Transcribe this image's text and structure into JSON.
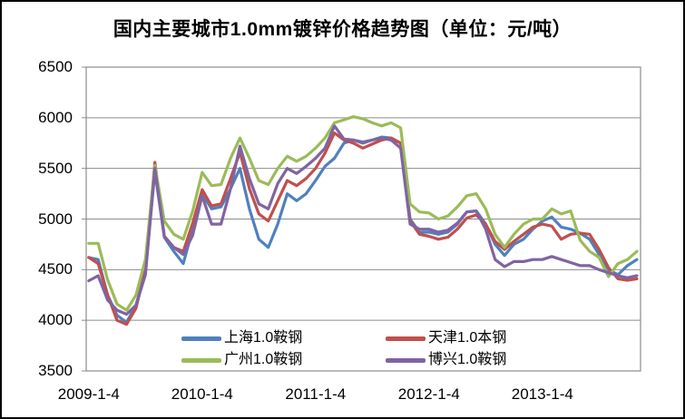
{
  "chart_data": {
    "type": "line",
    "title": "国内主要城市1.0mm镀锌价格趋势图（单位：元/吨）",
    "unit": "元/吨",
    "grid": true,
    "legend_position": "bottom-inside-two-columns",
    "y_axis": {
      "min": 3500,
      "max": 6500,
      "step": 500,
      "ticks": [
        6500,
        6000,
        5500,
        5000,
        4500,
        4000,
        3500
      ]
    },
    "x_axis": {
      "tick_labels": [
        "2009-1-4",
        "2010-1-4",
        "2011-1-4",
        "2012-1-4",
        "2013-1-4"
      ],
      "sampling": "monthly",
      "start": "2009-01",
      "end": "2013-11"
    },
    "axis_color": "#8c8c8c",
    "series": [
      {
        "name": "上海1.0鞍钢",
        "color": "#4F81BD",
        "values": [
          4620,
          4600,
          4250,
          4050,
          3980,
          4150,
          4480,
          5470,
          4820,
          4680,
          4560,
          4900,
          5250,
          5100,
          5120,
          5300,
          5500,
          5100,
          4800,
          4720,
          4950,
          5250,
          5180,
          5250,
          5380,
          5520,
          5600,
          5750,
          5780,
          5760,
          5780,
          5810,
          5800,
          5750,
          5000,
          4870,
          4870,
          4850,
          4870,
          4950,
          5070,
          5080,
          4950,
          4750,
          4640,
          4750,
          4800,
          4900,
          4980,
          5020,
          4920,
          4900,
          4860,
          4800,
          4650,
          4500,
          4450,
          4540,
          4600
        ]
      },
      {
        "name": "天津1.0本钢",
        "color": "#C0504D",
        "values": [
          4620,
          4560,
          4250,
          4000,
          3960,
          4120,
          4500,
          5560,
          4830,
          4720,
          4680,
          4960,
          5290,
          5130,
          5150,
          5400,
          5660,
          5300,
          5050,
          4980,
          5180,
          5380,
          5330,
          5400,
          5500,
          5650,
          5850,
          5780,
          5750,
          5700,
          5740,
          5780,
          5800,
          5750,
          4980,
          4850,
          4830,
          4800,
          4820,
          4900,
          5010,
          5040,
          4950,
          4780,
          4700,
          4780,
          4850,
          4920,
          4950,
          4930,
          4800,
          4850,
          4860,
          4850,
          4700,
          4520,
          4410,
          4395,
          4410
        ]
      },
      {
        "name": "广州1.0鞍钢",
        "color": "#9BBB59",
        "values": [
          4760,
          4760,
          4400,
          4160,
          4100,
          4250,
          4600,
          5530,
          4980,
          4850,
          4800,
          5080,
          5460,
          5330,
          5340,
          5600,
          5800,
          5600,
          5380,
          5340,
          5500,
          5620,
          5570,
          5620,
          5700,
          5800,
          5950,
          5980,
          6010,
          5990,
          5950,
          5920,
          5950,
          5900,
          5150,
          5070,
          5060,
          5000,
          5030,
          5120,
          5230,
          5250,
          5100,
          4850,
          4720,
          4850,
          4950,
          5000,
          5000,
          5100,
          5050,
          5080,
          4790,
          4680,
          4620,
          4430,
          4560,
          4600,
          4680
        ]
      },
      {
        "name": "博兴1.0鞍钢",
        "color": "#8064A2",
        "values": [
          4390,
          4440,
          4200,
          4100,
          4060,
          4150,
          4450,
          5500,
          4830,
          4720,
          4650,
          4840,
          5230,
          4950,
          4950,
          5300,
          5720,
          5400,
          5150,
          5100,
          5350,
          5500,
          5450,
          5520,
          5600,
          5700,
          5920,
          5790,
          5780,
          5750,
          5780,
          5800,
          5780,
          5700,
          4950,
          4900,
          4900,
          4870,
          4890,
          4960,
          5070,
          5080,
          4900,
          4600,
          4530,
          4580,
          4580,
          4600,
          4600,
          4630,
          4600,
          4570,
          4540,
          4540,
          4500,
          4470,
          4440,
          4420,
          4440
        ]
      }
    ]
  }
}
